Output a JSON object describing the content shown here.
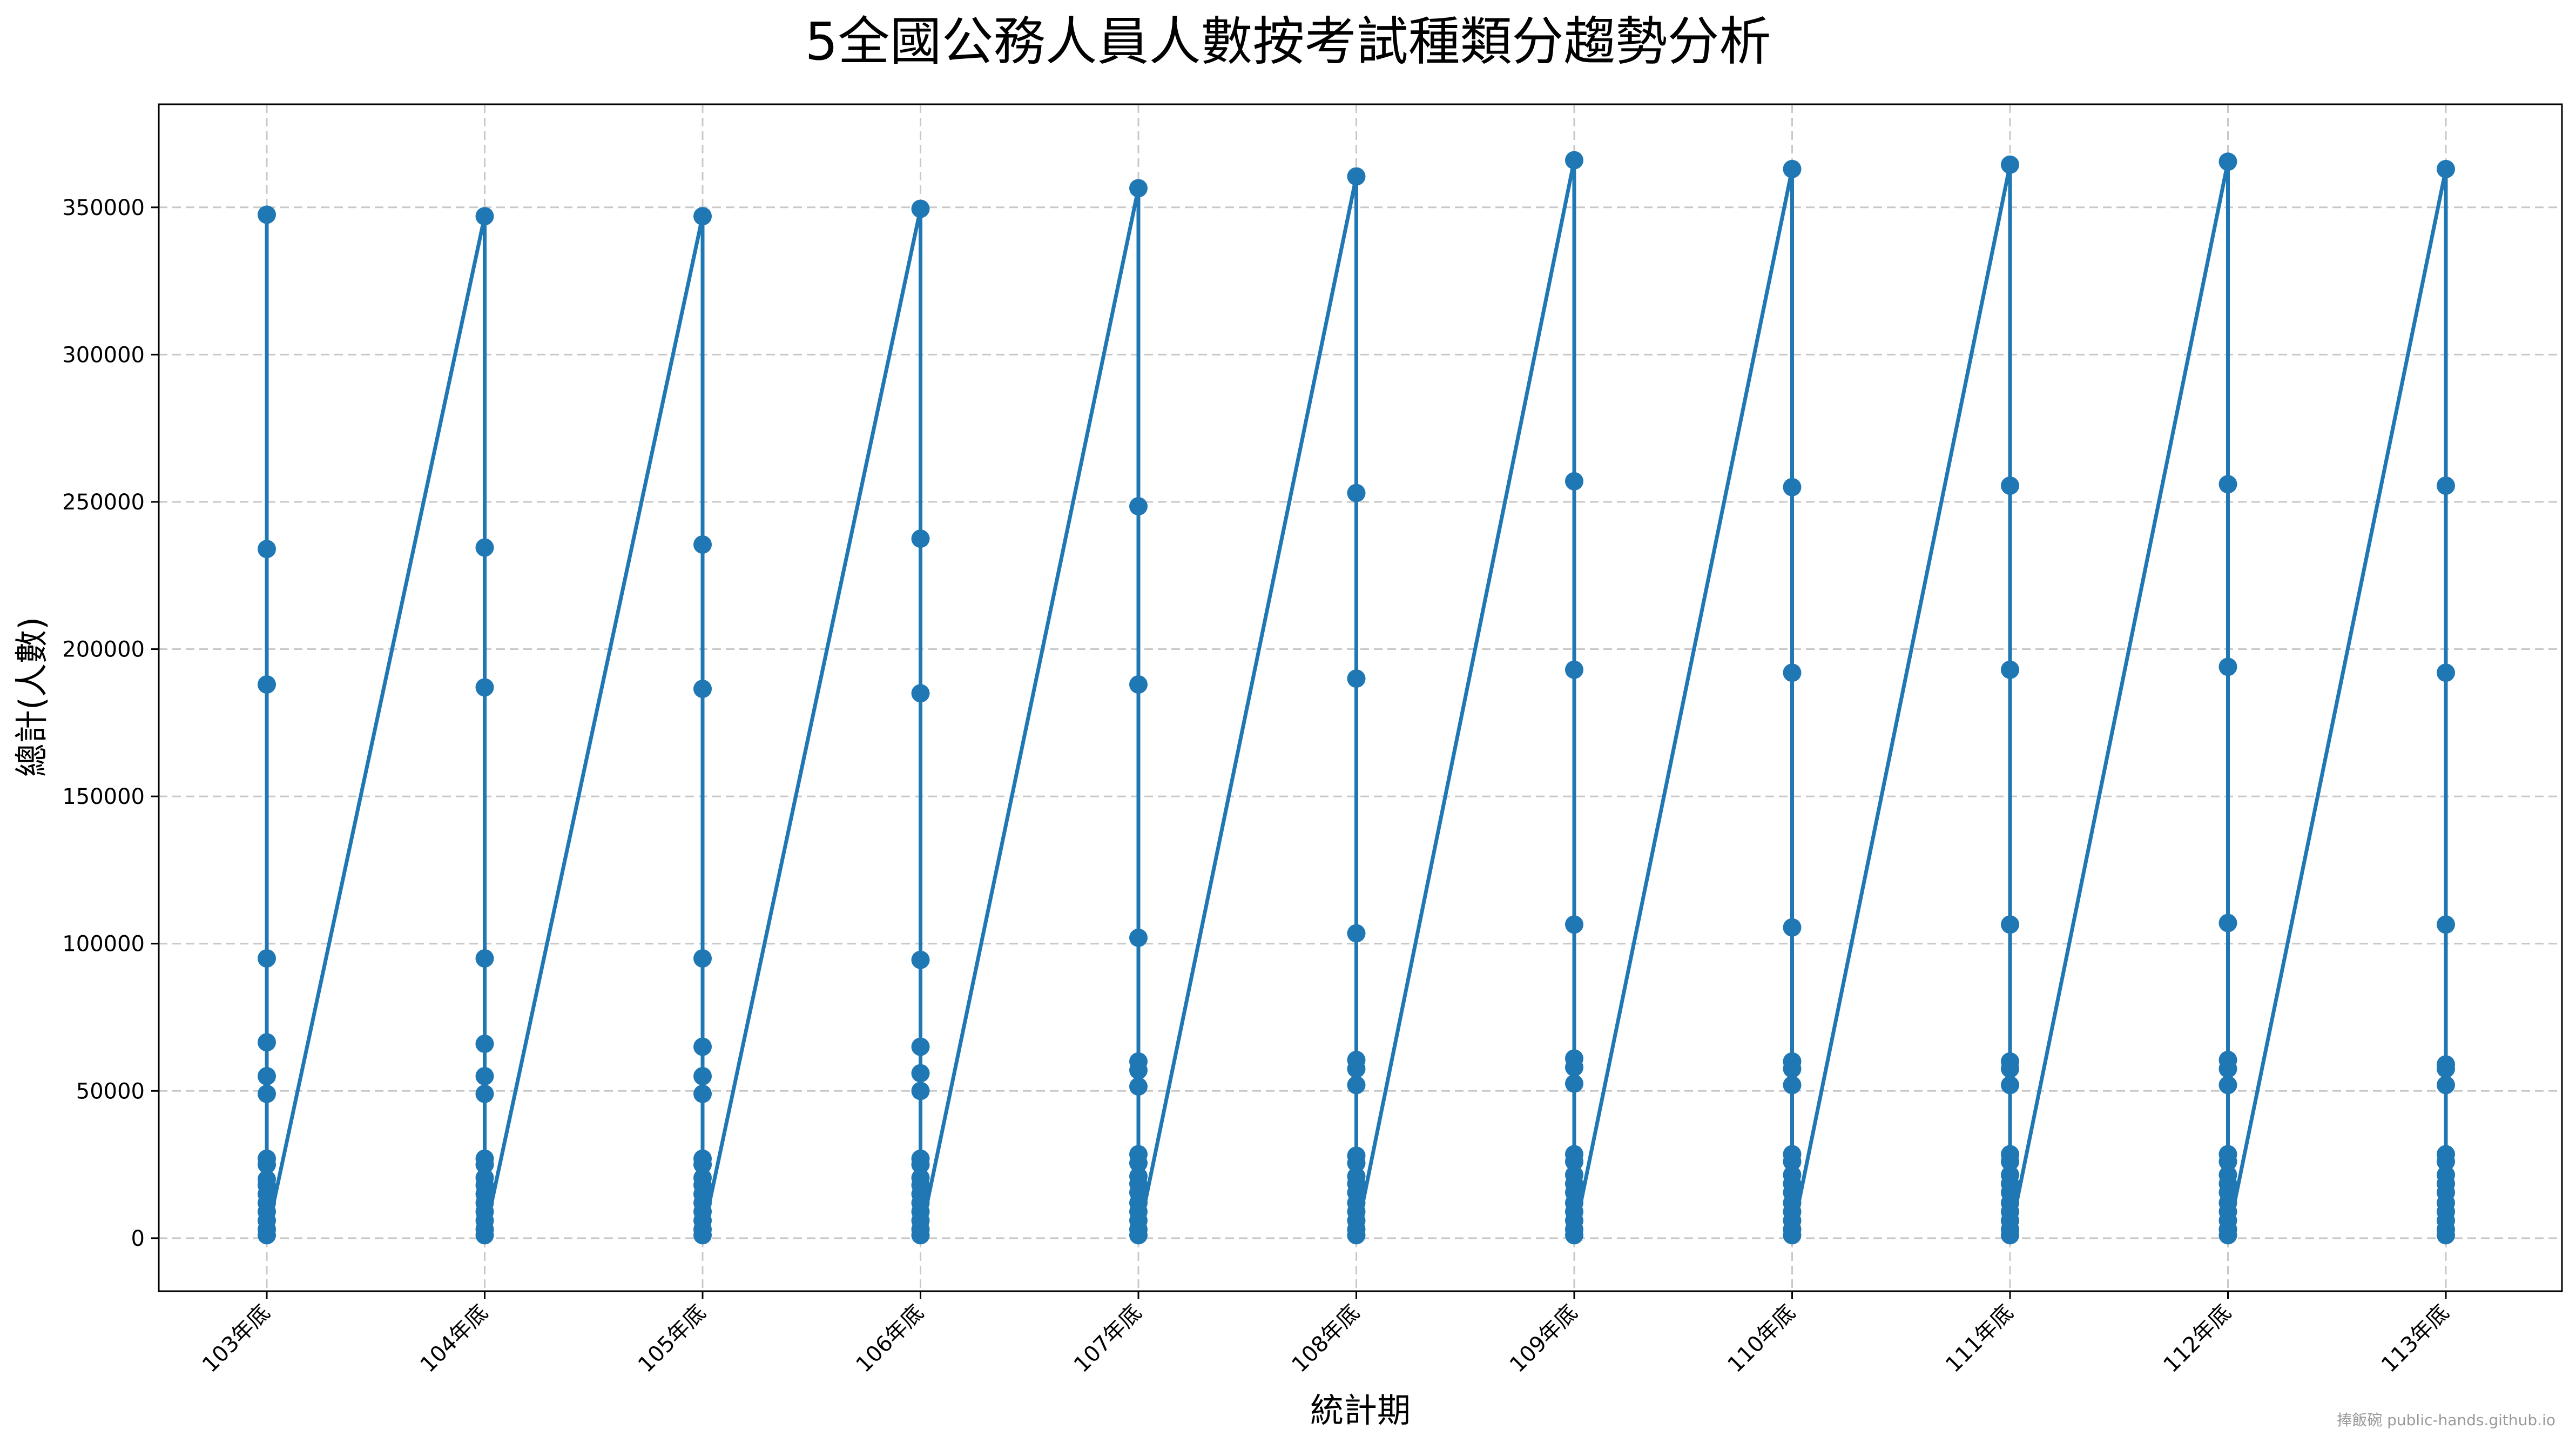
{
  "chart_data": {
    "type": "line",
    "title": "5全國公務人員人數按考試種類分趨勢分析",
    "xlabel": "統計期",
    "ylabel": "總計(人數)",
    "categories": [
      "103年底",
      "104年底",
      "105年底",
      "106年底",
      "107年底",
      "108年底",
      "109年底",
      "110年底",
      "111年底",
      "112年底",
      "113年底"
    ],
    "ylim": [
      -18000,
      385000
    ],
    "yticks": [
      0,
      50000,
      100000,
      150000,
      200000,
      250000,
      300000,
      350000
    ],
    "grid": true,
    "series": [
      {
        "values": [
          [
            347500,
            234000,
            188000,
            95000,
            66500,
            55000,
            49000,
            27000,
            25000,
            20000,
            18000,
            15000,
            12000,
            9000,
            6000,
            3000,
            1000
          ],
          [
            347000,
            234500,
            187000,
            95000,
            66000,
            55000,
            49000,
            27000,
            25000,
            20500,
            18000,
            15000,
            12000,
            9000,
            6000,
            3000,
            1000
          ],
          [
            347000,
            235500,
            186500,
            95000,
            65000,
            55000,
            49000,
            27000,
            25000,
            20500,
            18000,
            15000,
            12000,
            9000,
            6000,
            3000,
            1000
          ],
          [
            349500,
            237500,
            185000,
            94500,
            65000,
            56000,
            50000,
            27000,
            25000,
            20500,
            18000,
            15000,
            12000,
            9000,
            6000,
            3000,
            1000
          ],
          [
            356500,
            248500,
            188000,
            102000,
            60000,
            57000,
            51500,
            28500,
            25500,
            21000,
            18500,
            15500,
            12000,
            9000,
            6000,
            3000,
            1000
          ],
          [
            360500,
            253000,
            190000,
            103500,
            60500,
            57500,
            52000,
            28000,
            25500,
            21000,
            18500,
            15500,
            12000,
            9000,
            6000,
            3000,
            1000
          ],
          [
            366000,
            257000,
            193000,
            106500,
            61000,
            58000,
            52500,
            28500,
            26000,
            21500,
            18500,
            15500,
            12000,
            9000,
            6000,
            3000,
            1000
          ],
          [
            363000,
            255000,
            192000,
            105500,
            60000,
            57500,
            52000,
            28500,
            26000,
            21500,
            18500,
            15500,
            12000,
            9000,
            6000,
            3000,
            1000
          ],
          [
            364500,
            255500,
            193000,
            106500,
            60000,
            57500,
            52000,
            28500,
            26000,
            21500,
            18500,
            15500,
            12000,
            9000,
            6000,
            3000,
            1000
          ],
          [
            365500,
            256000,
            194000,
            107000,
            60500,
            57500,
            52000,
            28500,
            26000,
            21500,
            18500,
            15500,
            12000,
            9000,
            6000,
            3000,
            1000
          ],
          [
            363000,
            255500,
            192000,
            106500,
            59000,
            57500,
            52000,
            28500,
            26000,
            21500,
            18500,
            15500,
            12000,
            9000,
            6000,
            3000,
            1000
          ]
        ]
      }
    ]
  },
  "watermark": "捧飯碗 public-hands.github.io",
  "colors": {
    "series": "#1f77b4",
    "grid": "#c8c8c8",
    "frame": "#000000"
  }
}
